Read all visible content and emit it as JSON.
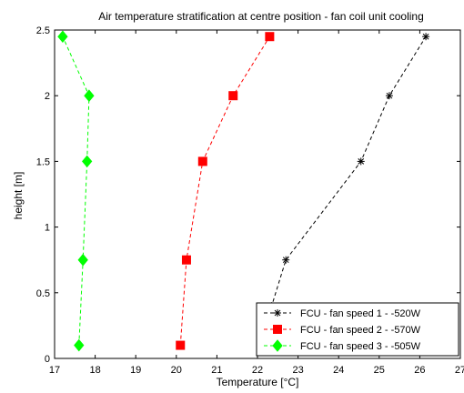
{
  "chart_data": {
    "type": "line",
    "title": "Air temperature stratification at centre position - fan coil unit cooling",
    "xlabel": "Temperature [°C]",
    "ylabel": "height [m]",
    "xlim": [
      17,
      27
    ],
    "ylim": [
      0,
      2.5
    ],
    "xticks": [
      17,
      18,
      19,
      20,
      21,
      22,
      23,
      24,
      25,
      26,
      27
    ],
    "yticks": [
      0,
      0.5,
      1,
      1.5,
      2,
      2.5
    ],
    "xtick_labels": [
      "17",
      "18",
      "19",
      "20",
      "21",
      "22",
      "23",
      "24",
      "25",
      "26",
      "27"
    ],
    "ytick_labels": [
      "0",
      "0.5",
      "1",
      "1.5",
      "2",
      "2.5"
    ],
    "grid": false,
    "legend_position": "bottom-right",
    "series": [
      {
        "name": "FCU - fan speed 1 - -520W",
        "color": "#000000",
        "marker": "star",
        "line_style": "dashed",
        "points": [
          [
            22.15,
            0.1
          ],
          [
            22.35,
            0.4
          ],
          [
            22.7,
            0.75
          ],
          [
            24.55,
            1.5
          ],
          [
            25.25,
            2.0
          ],
          [
            26.15,
            2.45
          ]
        ]
      },
      {
        "name": "FCU - fan speed 2 - -570W",
        "color": "#ff0000",
        "marker": "square",
        "line_style": "dashed",
        "points": [
          [
            20.1,
            0.1
          ],
          [
            20.25,
            0.75
          ],
          [
            20.65,
            1.5
          ],
          [
            21.4,
            2.0
          ],
          [
            22.3,
            2.45
          ]
        ]
      },
      {
        "name": "FCU - fan speed 3 - -505W",
        "color": "#00ff00",
        "marker": "diamond",
        "line_style": "dashed",
        "points": [
          [
            17.6,
            0.1
          ],
          [
            17.7,
            0.75
          ],
          [
            17.8,
            1.5
          ],
          [
            17.85,
            2.0
          ],
          [
            17.2,
            2.45
          ]
        ]
      }
    ]
  }
}
